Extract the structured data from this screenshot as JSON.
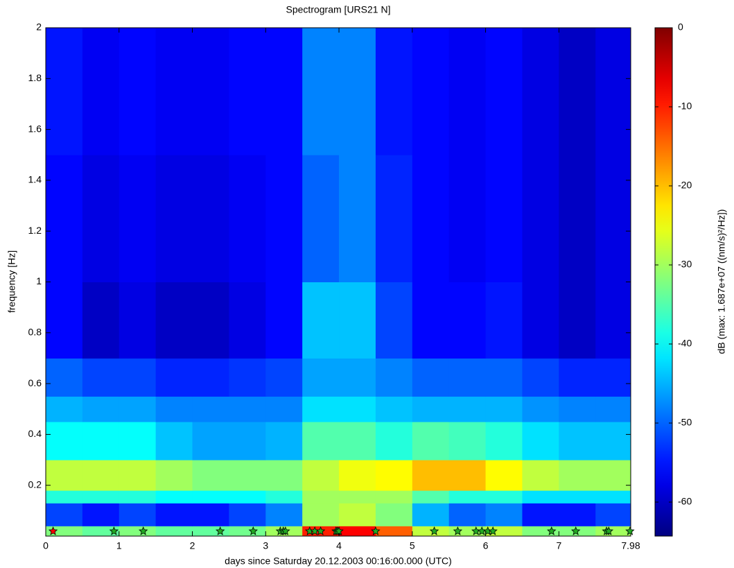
{
  "chart_data": {
    "type": "heatmap",
    "title": "Spectrogram [URS21 N]",
    "xlabel": "days since Saturday 20.12.2003 00:16:00.000 (UTC)",
    "ylabel": "frequency [Hz]",
    "colorbar_label": "dB (max: 1.687e+07 ((nm/s)²/Hz])",
    "colormap": "jet",
    "xlim": [
      0,
      7.98
    ],
    "xticks": [
      0,
      1,
      2,
      3,
      4,
      5,
      6,
      7,
      7.98
    ],
    "ylim": [
      0,
      2
    ],
    "yticks": [
      0.2,
      0.4,
      0.6,
      0.8,
      1,
      1.2,
      1.4,
      1.6,
      1.8,
      2
    ],
    "clim": [
      -64.3,
      0
    ],
    "cticks": [
      -60,
      -50,
      -40,
      -30,
      -20,
      -10,
      0
    ],
    "x_edges": [
      0,
      0.5,
      1,
      1.5,
      2,
      2.5,
      3,
      3.5,
      4,
      4.5,
      5,
      5.5,
      6,
      6.5,
      7,
      7.5,
      7.98
    ],
    "y_edges": [
      0,
      0.04,
      0.13,
      0.18,
      0.3,
      0.45,
      0.55,
      0.7,
      1.0,
      1.5,
      2
    ],
    "z": [
      [
        -32,
        -34,
        -32,
        -34,
        -34,
        -33,
        -30,
        -10,
        -8,
        -14,
        -28,
        -30,
        -28,
        -32,
        -32,
        -30
      ],
      [
        -52,
        -55,
        -52,
        -55,
        -55,
        -52,
        -48,
        -30,
        -28,
        -32,
        -45,
        -50,
        -48,
        -55,
        -55,
        -52
      ],
      [
        -38,
        -38,
        -38,
        -40,
        -40,
        -40,
        -38,
        -30,
        -30,
        -30,
        -35,
        -38,
        -38,
        -42,
        -42,
        -42
      ],
      [
        -28,
        -28,
        -28,
        -30,
        -32,
        -32,
        -32,
        -28,
        -25,
        -24,
        -20,
        -20,
        -24,
        -28,
        -30,
        -30
      ],
      [
        -40,
        -40,
        -40,
        -44,
        -46,
        -46,
        -45,
        -35,
        -35,
        -38,
        -35,
        -36,
        -38,
        -42,
        -44,
        -44
      ],
      [
        -45,
        -46,
        -46,
        -48,
        -48,
        -48,
        -48,
        -42,
        -42,
        -44,
        -45,
        -45,
        -45,
        -47,
        -48,
        -48
      ],
      [
        -50,
        -52,
        -52,
        -54,
        -54,
        -53,
        -52,
        -46,
        -46,
        -48,
        -50,
        -50,
        -50,
        -52,
        -54,
        -54
      ],
      [
        -56,
        -60,
        -58,
        -60,
        -60,
        -58,
        -56,
        -44,
        -44,
        -52,
        -56,
        -56,
        -55,
        -58,
        -60,
        -58
      ],
      [
        -56,
        -58,
        -57,
        -58,
        -58,
        -57,
        -56,
        -50,
        -48,
        -54,
        -56,
        -57,
        -56,
        -58,
        -60,
        -58
      ],
      [
        -55,
        -57,
        -56,
        -57,
        -57,
        -56,
        -56,
        -48,
        -48,
        -55,
        -56,
        -57,
        -56,
        -58,
        -60,
        -58
      ]
    ],
    "markers": {
      "x": [
        0.1,
        0.93,
        1.33,
        2.38,
        2.83,
        3.2,
        3.24,
        3.27,
        3.6,
        3.67,
        3.75,
        3.96,
        3.98,
        4.0,
        4.5,
        5.3,
        5.62,
        5.87,
        5.95,
        6.03,
        6.1,
        6.9,
        7.23,
        7.65,
        7.68,
        7.97
      ],
      "colors": [
        "#ff0000",
        "#22aa22",
        "#22aa22",
        "#22aa22",
        "#22aa22",
        "#22aa22",
        "#22aa22",
        "#22aa22",
        "#22aa22",
        "#22aa22",
        "#22aa22",
        "#22aa22",
        "#22aa22",
        "#22aa22",
        "#22aa22",
        "#22aa22",
        "#22aa22",
        "#22aa22",
        "#22aa22",
        "#22aa22",
        "#22aa22",
        "#22aa22",
        "#22aa22",
        "#22aa22",
        "#22aa22",
        "#22aa22"
      ]
    }
  }
}
